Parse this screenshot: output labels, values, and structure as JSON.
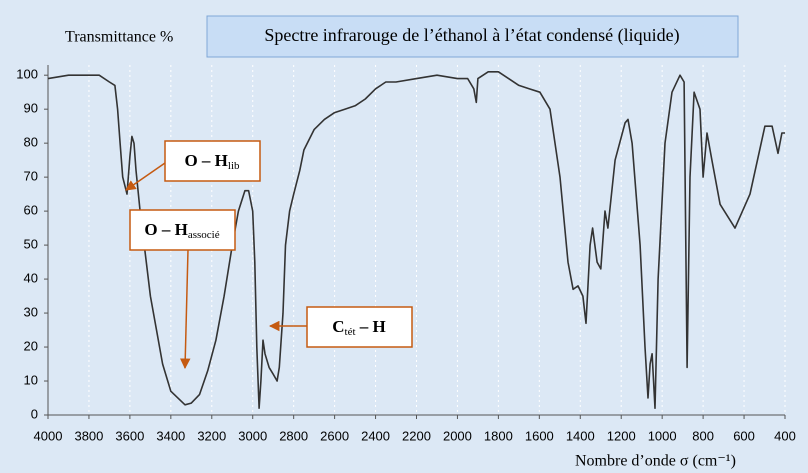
{
  "chart_data": {
    "type": "line",
    "title": "Spectre infrarouge de l’éthanol à l’état condensé (liquide)",
    "ylabel": "Transmittance %",
    "xlabel": "Nombre d’onde σ (cm⁻¹)",
    "xlim": [
      4000,
      400
    ],
    "ylim": [
      0,
      103
    ],
    "xticks": [
      4000,
      3800,
      3600,
      3400,
      3200,
      3000,
      2800,
      2600,
      2400,
      2200,
      2000,
      1800,
      1600,
      1400,
      1200,
      1000,
      800,
      600,
      400
    ],
    "yticks": [
      0,
      10,
      20,
      30,
      40,
      50,
      60,
      70,
      80,
      90,
      100
    ],
    "grid": true,
    "color": "#333333",
    "x": [
      4000,
      3900,
      3800,
      3750,
      3700,
      3673,
      3660,
      3648,
      3635,
      3614,
      3600,
      3590,
      3580,
      3570,
      3550,
      3520,
      3500,
      3470,
      3440,
      3400,
      3331,
      3300,
      3260,
      3220,
      3180,
      3140,
      3100,
      3070,
      3038,
      3020,
      3000,
      2990,
      2980,
      2969,
      2960,
      2950,
      2940,
      2920,
      2900,
      2881,
      2870,
      2852,
      2840,
      2820,
      2800,
      2770,
      2750,
      2700,
      2650,
      2600,
      2550,
      2500,
      2450,
      2400,
      2350,
      2300,
      2200,
      2100,
      2000,
      1950,
      1920,
      1908,
      1900,
      1850,
      1800,
      1750,
      1700,
      1650,
      1597,
      1548,
      1499,
      1460,
      1435,
      1411,
      1387,
      1372,
      1352,
      1340,
      1318,
      1300,
      1279,
      1265,
      1230,
      1181,
      1167,
      1147,
      1108,
      1084,
      1069,
      1059,
      1049,
      1035,
      1020,
      986,
      952,
      913,
      893,
      878,
      864,
      844,
      815,
      800,
      781,
      757,
      717,
      644,
      571,
      498,
      463,
      434,
      415,
      400
    ],
    "values": [
      99,
      100,
      100,
      100,
      98,
      97,
      90,
      80,
      70,
      65,
      76,
      82,
      80,
      72,
      60,
      45,
      35,
      25,
      15,
      7,
      3,
      3.5,
      6,
      13,
      22,
      35,
      50,
      60,
      66,
      66,
      60,
      45,
      20,
      2,
      10,
      22,
      18,
      14,
      12,
      10,
      14,
      30,
      50,
      60,
      65,
      72,
      78,
      84,
      87,
      89,
      90,
      91,
      93,
      96,
      98,
      98,
      99,
      100,
      99,
      99,
      96,
      92,
      99,
      101,
      101,
      99,
      97,
      96,
      95,
      90,
      70,
      45,
      37,
      38,
      35,
      27,
      50,
      55,
      45,
      43,
      60,
      55,
      75,
      86,
      87,
      80,
      50,
      20,
      5,
      15,
      18,
      2,
      40,
      80,
      95,
      100,
      98,
      14,
      70,
      95,
      90,
      70,
      83,
      75,
      62,
      55,
      65,
      85,
      85,
      77,
      83,
      83
    ],
    "annotations": [
      {
        "text": "O – H",
        "sub": "lib"
      },
      {
        "text": "O – H",
        "sub": "associé"
      },
      {
        "text": "C",
        "sub": "tét",
        "tail": " – H"
      }
    ]
  }
}
